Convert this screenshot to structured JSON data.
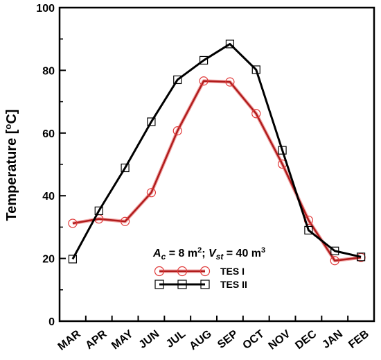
{
  "chart_data": {
    "type": "line",
    "categories": [
      "MAR",
      "APR",
      "MAY",
      "JUN",
      "JUL",
      "AUG",
      "SEP",
      "OCT",
      "NOV",
      "DEC",
      "JAN",
      "FEB"
    ],
    "ylabel_main": "Temperature [",
    "ylabel_sup": "o",
    "ylabel_end": "C]",
    "xlabel": "",
    "ylim": [
      0,
      100
    ],
    "yticks": [
      0,
      20,
      40,
      60,
      80,
      100
    ],
    "grid": false,
    "legend_position": "bottom-center",
    "annotation": {
      "a_sym": "A",
      "a_sub": "c",
      "a_val": " = 8 m",
      "a_sup": "2",
      "sep": "; ",
      "v_sym": "V",
      "v_sub": "st",
      "v_val": " = 40 m",
      "v_sup": "3"
    },
    "series": [
      {
        "name": "TES I",
        "marker": "circle",
        "color": "#b01c1c",
        "values": [
          31.2,
          32.6,
          31.8,
          41,
          60.7,
          76.6,
          76.3,
          66.2,
          50.1,
          32.2,
          19.3,
          20.3
        ]
      },
      {
        "name": "TES II",
        "marker": "square",
        "color": "#000000",
        "values": [
          19.8,
          35.2,
          48.9,
          63.6,
          77,
          83.2,
          88.4,
          80.2,
          54.5,
          29,
          22.4,
          20.5
        ]
      }
    ]
  }
}
